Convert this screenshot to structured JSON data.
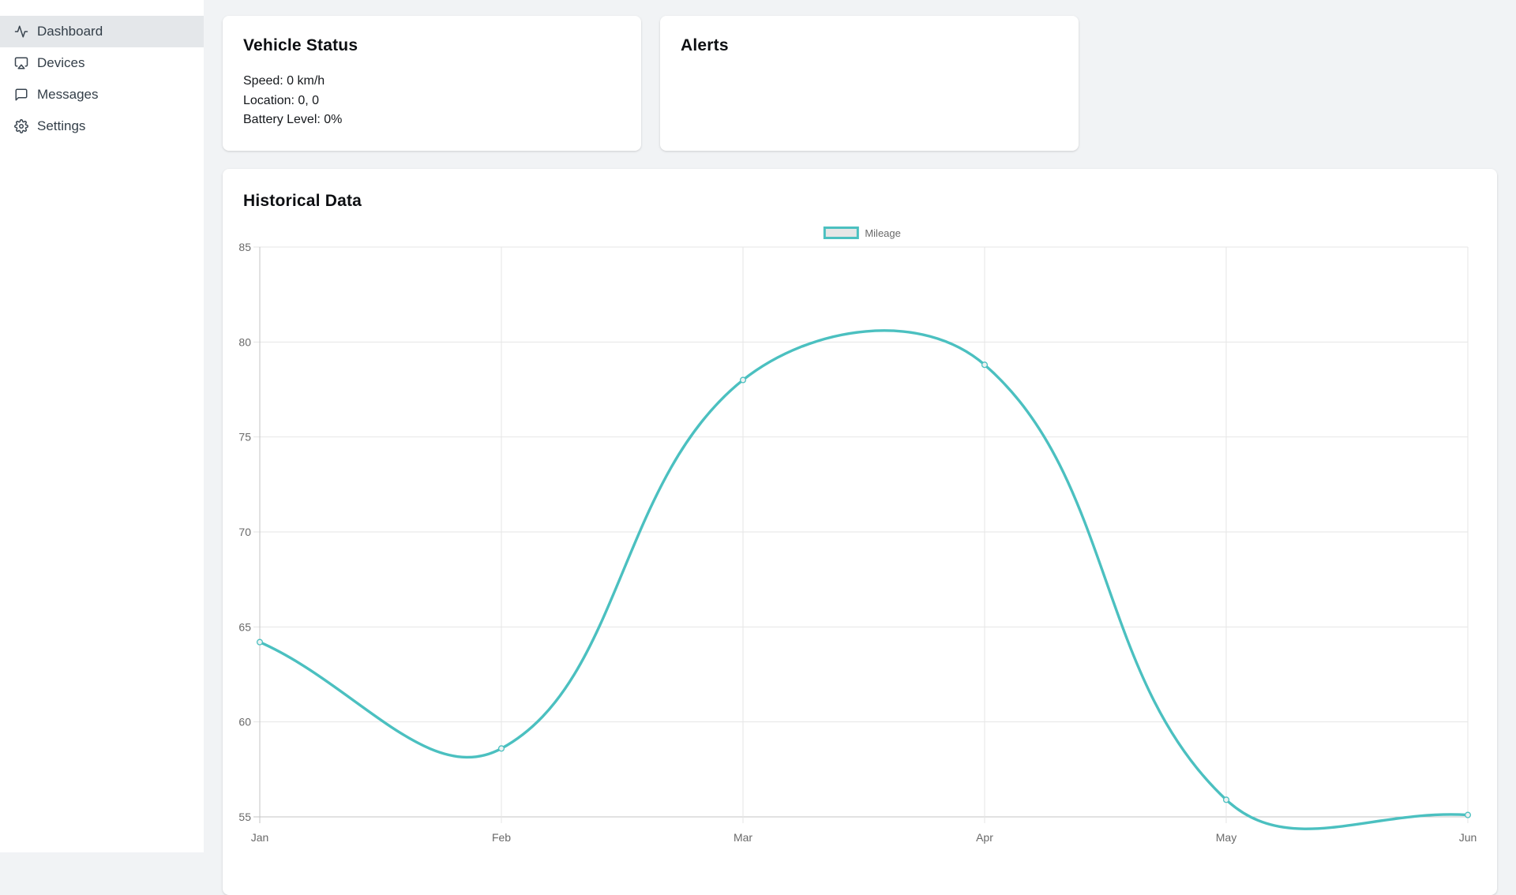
{
  "sidebar": {
    "items": [
      {
        "label": "Dashboard",
        "icon": "activity-icon",
        "active": true
      },
      {
        "label": "Devices",
        "icon": "airplay-icon",
        "active": false
      },
      {
        "label": "Messages",
        "icon": "message-square-icon",
        "active": false
      },
      {
        "label": "Settings",
        "icon": "gear-icon",
        "active": false
      }
    ]
  },
  "vehicle_status": {
    "title": "Vehicle Status",
    "lines": [
      "Speed: 0 km/h",
      "Location: 0, 0",
      "Battery Level: 0%"
    ]
  },
  "alerts": {
    "title": "Alerts"
  },
  "historical": {
    "title": "Historical Data"
  },
  "chart_data": {
    "type": "line",
    "title": "Historical Data",
    "categories": [
      "Jan",
      "Feb",
      "Mar",
      "Apr",
      "May",
      "Jun"
    ],
    "series": [
      {
        "name": "Mileage",
        "values": [
          64.2,
          58.6,
          78.0,
          78.8,
          55.9,
          55.1
        ]
      }
    ],
    "ylim": [
      55,
      85
    ],
    "y_ticks": [
      55,
      60,
      65,
      70,
      75,
      80,
      85
    ],
    "xlabel": "",
    "ylabel": "",
    "grid": true,
    "legend_position": "top-center",
    "smoothing": 0.4,
    "colors": {
      "line": "#4bc0c0",
      "point_fill": "#eef1f1",
      "legend_box_fill": "#e6e6e6",
      "tick_text": "#696969",
      "grid_inner": "#e6e6e6",
      "grid_edge": "#c6c6c6"
    }
  }
}
